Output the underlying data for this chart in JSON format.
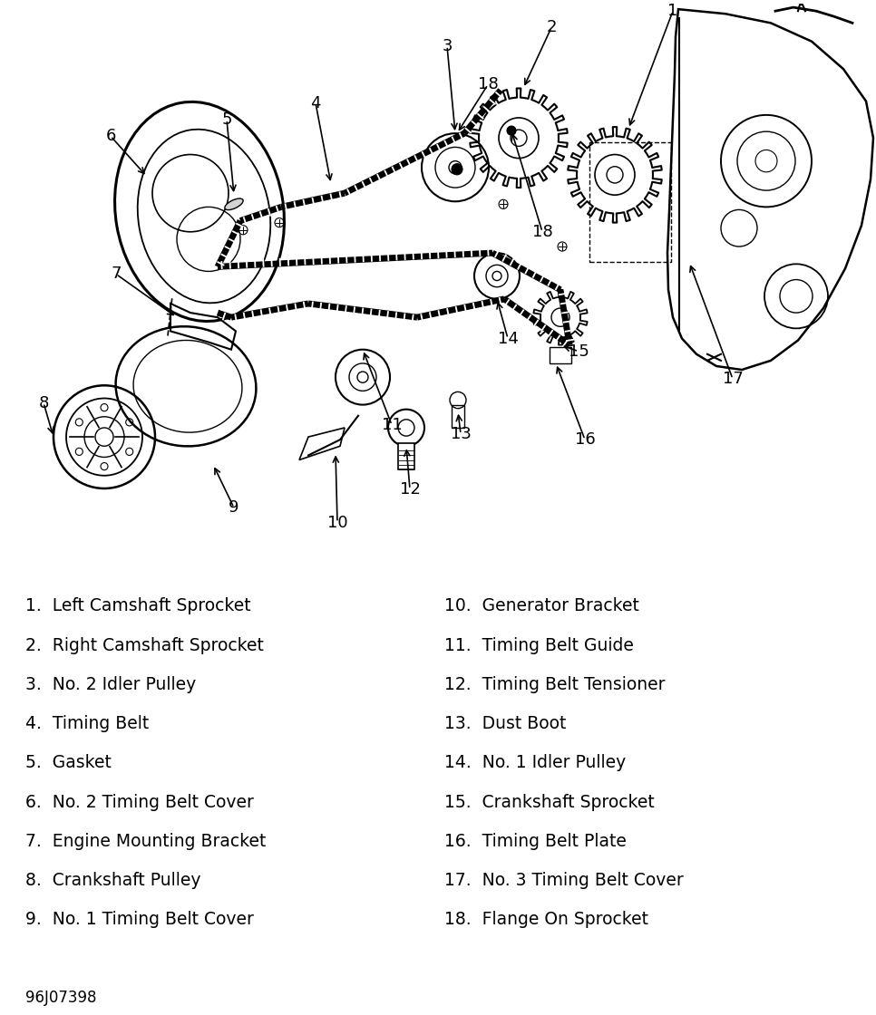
{
  "bg_color": "#ffffff",
  "text_color": "#000000",
  "parts_left": [
    "1.  Left Camshaft Sprocket",
    "2.  Right Camshaft Sprocket",
    "3.  No. 2 Idler Pulley",
    "4.  Timing Belt",
    "5.  Gasket",
    "6.  No. 2 Timing Belt Cover",
    "7.  Engine Mounting Bracket",
    "8.  Crankshaft Pulley",
    "9.  No. 1 Timing Belt Cover"
  ],
  "parts_right": [
    "10.  Generator Bracket",
    "11.  Timing Belt Guide",
    "12.  Timing Belt Tensioner",
    "13.  Dust Boot",
    "14.  No. 1 Idler Pulley",
    "15.  Crankshaft Sprocket",
    "16.  Timing Belt Plate",
    "17.  No. 3 Timing Belt Cover",
    "18.  Flange On Sprocket"
  ],
  "code_label": "96J07398",
  "font_size_parts": 13.5,
  "font_size_code": 12,
  "font_size_num": 13
}
